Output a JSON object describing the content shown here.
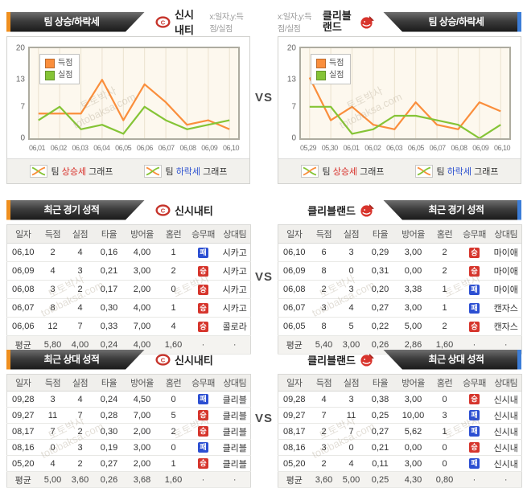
{
  "page": {
    "vs": "VS"
  },
  "watermark": {
    "line1": "토토박사",
    "line2": "totobaksa.com"
  },
  "teams": {
    "left": "신시내티",
    "right": "클리블랜드"
  },
  "chart_section": {
    "tab_label": "팀 상승/하락세",
    "axis_note": "x:일자,y:득점/실점",
    "footer": [
      {
        "prefix": "팀 ",
        "highlight": "상승세",
        "suffix": " 그래프"
      },
      {
        "prefix": "팀 ",
        "highlight": "하락세",
        "suffix": " 그래프"
      }
    ]
  },
  "chart_data": [
    {
      "type": "line",
      "title": "신시내티 팀 상승/하락세",
      "x": [
        "06,01",
        "06,02",
        "06,03",
        "06,04",
        "06,05",
        "06,06",
        "06,07",
        "06,08",
        "06,09",
        "06,10"
      ],
      "series": [
        {
          "name": "득점",
          "color": "#fa8e3c",
          "values": [
            5.5,
            5.5,
            5.5,
            13,
            4,
            12,
            8,
            3,
            4,
            2
          ]
        },
        {
          "name": "실점",
          "color": "#85c436",
          "values": [
            4,
            7,
            2,
            3,
            1,
            7,
            4,
            2,
            3,
            4
          ]
        }
      ],
      "ylim": [
        0,
        20
      ],
      "y_ticks": [
        20,
        13,
        7,
        0
      ],
      "legend_position": "top-left",
      "grid": "vertical"
    },
    {
      "type": "line",
      "title": "클리블랜드 팀 상승/하락세",
      "x": [
        "05,29",
        "05,30",
        "06,01",
        "06,02",
        "06,03",
        "06,05",
        "06,07",
        "06,08",
        "06,09",
        "06,10"
      ],
      "series": [
        {
          "name": "득점",
          "color": "#fa8e3c",
          "values": [
            13.5,
            4,
            7,
            3,
            2,
            8,
            3,
            2,
            8,
            6
          ]
        },
        {
          "name": "실점",
          "color": "#85c436",
          "values": [
            7,
            7,
            1,
            2,
            5,
            5,
            4,
            3,
            0,
            3
          ]
        }
      ],
      "ylim": [
        0,
        20
      ],
      "y_ticks": [
        20,
        13,
        7,
        0
      ],
      "legend_position": "top-left",
      "grid": "vertical"
    }
  ],
  "tables": {
    "columns": [
      "일자",
      "득점",
      "실점",
      "타율",
      "방어율",
      "홈런",
      "승무패",
      "상대팀"
    ],
    "avg_label": "평균",
    "dot": "·",
    "badge": {
      "win": "승",
      "loss": "패"
    },
    "recent": {
      "tab_label": "최근 경기 성적",
      "left": {
        "rows": [
          [
            "06,10",
            "2",
            "4",
            "0,16",
            "4,00",
            "1",
            "loss",
            "시카고"
          ],
          [
            "06,09",
            "4",
            "3",
            "0,21",
            "3,00",
            "2",
            "win",
            "시카고"
          ],
          [
            "06,08",
            "3",
            "2",
            "0,17",
            "2,00",
            "0",
            "win",
            "시카고"
          ],
          [
            "06,07",
            "8",
            "4",
            "0,30",
            "4,00",
            "1",
            "win",
            "시카고"
          ],
          [
            "06,06",
            "12",
            "7",
            "0,33",
            "7,00",
            "4",
            "win",
            "콜로라"
          ]
        ],
        "avg": [
          "5,80",
          "4,00",
          "0,24",
          "4,00",
          "1,60"
        ]
      },
      "right": {
        "rows": [
          [
            "06,10",
            "6",
            "3",
            "0,29",
            "3,00",
            "2",
            "win",
            "마이애"
          ],
          [
            "06,09",
            "8",
            "0",
            "0,31",
            "0,00",
            "2",
            "win",
            "마이애"
          ],
          [
            "06,08",
            "2",
            "3",
            "0,20",
            "3,38",
            "1",
            "loss",
            "마이애"
          ],
          [
            "06,07",
            "3",
            "4",
            "0,27",
            "3,00",
            "1",
            "loss",
            "캔자스"
          ],
          [
            "06,05",
            "8",
            "5",
            "0,22",
            "5,00",
            "2",
            "win",
            "캔자스"
          ]
        ],
        "avg": [
          "5,40",
          "3,00",
          "0,26",
          "2,86",
          "1,60"
        ]
      }
    },
    "h2h": {
      "tab_label": "최근 상대 성적",
      "left": {
        "rows": [
          [
            "09,28",
            "3",
            "4",
            "0,24",
            "4,50",
            "0",
            "loss",
            "클리블"
          ],
          [
            "09,27",
            "11",
            "7",
            "0,28",
            "7,00",
            "5",
            "win",
            "클리블"
          ],
          [
            "08,17",
            "7",
            "2",
            "0,30",
            "2,00",
            "2",
            "win",
            "클리블"
          ],
          [
            "08,16",
            "0",
            "3",
            "0,19",
            "3,00",
            "0",
            "loss",
            "클리블"
          ],
          [
            "05,20",
            "4",
            "2",
            "0,27",
            "2,00",
            "1",
            "win",
            "클리블"
          ]
        ],
        "avg": [
          "5,00",
          "3,60",
          "0,26",
          "3,68",
          "1,60"
        ]
      },
      "right": {
        "rows": [
          [
            "09,28",
            "4",
            "3",
            "0,38",
            "3,00",
            "0",
            "win",
            "신시내"
          ],
          [
            "09,27",
            "7",
            "11",
            "0,25",
            "10,00",
            "3",
            "loss",
            "신시내"
          ],
          [
            "08,17",
            "2",
            "7",
            "0,27",
            "5,62",
            "1",
            "loss",
            "신시내"
          ],
          [
            "08,16",
            "3",
            "0",
            "0,21",
            "0,00",
            "0",
            "win",
            "신시내"
          ],
          [
            "05,20",
            "2",
            "4",
            "0,11",
            "3,00",
            "0",
            "loss",
            "신시내"
          ]
        ],
        "avg": [
          "3,60",
          "5,00",
          "0,25",
          "4,30",
          "0,80"
        ]
      }
    }
  }
}
